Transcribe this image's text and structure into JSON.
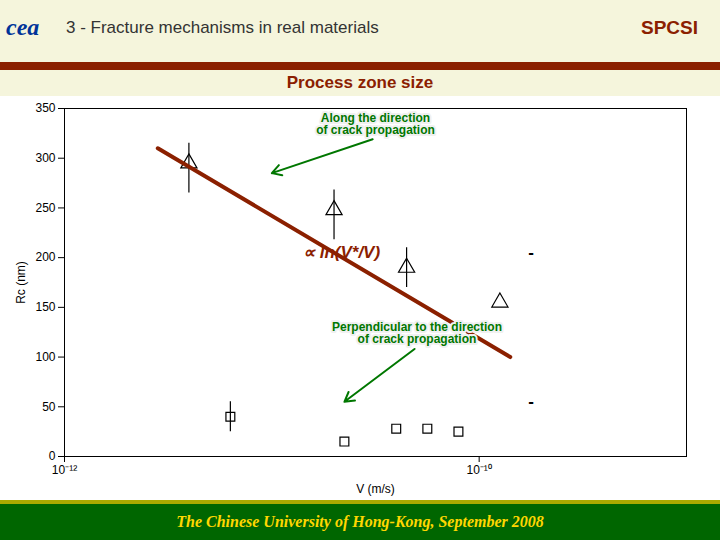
{
  "chart_data": {
    "type": "scatter",
    "title": "Process zone size",
    "title_color": "#8B2000",
    "header_left": "cea",
    "header_title": "3 - Fracture mechanisms in real materials",
    "header_right": "SPCSI",
    "footer": "The Chinese University of Hong-Kong, September 2008",
    "xlabel": "V (m/s)",
    "ylabel": "Rc (nm)",
    "log": "x",
    "xlim": [
      1e-12,
      1e-09
    ],
    "xticks": [
      {
        "value": 1e-12,
        "label": "10⁻¹²"
      },
      {
        "value": 1e-10,
        "label": "10⁻¹⁰"
      }
    ],
    "ylim": [
      0,
      350
    ],
    "yticks": [
      0,
      50,
      100,
      150,
      200,
      250,
      300,
      350
    ],
    "series": [
      {
        "type": "scatter",
        "marker": "triangle",
        "color": "#000000",
        "x": [
          3.981071705534972e-12,
          1.9952623149688796e-11,
          4.466835921509631e-11,
          1.2589254117941672e-10
        ],
        "values": [
          295,
          248,
          190,
          155
        ],
        "error_minus": [
          30,
          30,
          20,
          null
        ],
        "error_plus": [
          20,
          20,
          20,
          null
        ]
      },
      {
        "type": "scatter",
        "marker": "square",
        "color": "#000000",
        "x": [
          6.309573444801933e-12,
          2.2387211385683393e-11,
          3.981071705534972e-11,
          5.623413251903491e-11,
          7.943282347242815e-11
        ],
        "values": [
          40,
          15,
          28,
          28,
          25
        ],
        "error_minus": [
          15,
          null,
          null,
          null,
          null
        ],
        "error_plus": [
          15,
          null,
          null,
          null,
          null
        ]
      },
      {
        "type": "line",
        "color": "#8B2000",
        "x": [
          2.8183829312644537e-12,
          1.4125375446227543e-10
        ],
        "values": [
          310,
          100
        ]
      }
    ],
    "annotations": [
      {
        "text": "∝ ln(V*/V)",
        "x": 1.4125375446227544e-11,
        "y": 200,
        "color": "#8B2000"
      },
      {
        "text": "-",
        "x": 1.778279410038923e-10,
        "y": 200,
        "color": "#000000"
      },
      {
        "text": "-",
        "x": 1.778279410038923e-10,
        "y": 50,
        "color": "#000000"
      },
      {
        "text": "Along the direction\nof crack propagation",
        "x": 3.1622776601683794e-11,
        "y": 320,
        "arrow_x": 1e-11,
        "arrow_y": 285,
        "color": "#007700"
      },
      {
        "text": "Perpendicular to the direction\nof crack propagation",
        "x": 5.011872336272725e-11,
        "y": 110,
        "arrow_x": 2.2387211385683393e-11,
        "arrow_y": 55,
        "color": "#007700"
      }
    ]
  }
}
